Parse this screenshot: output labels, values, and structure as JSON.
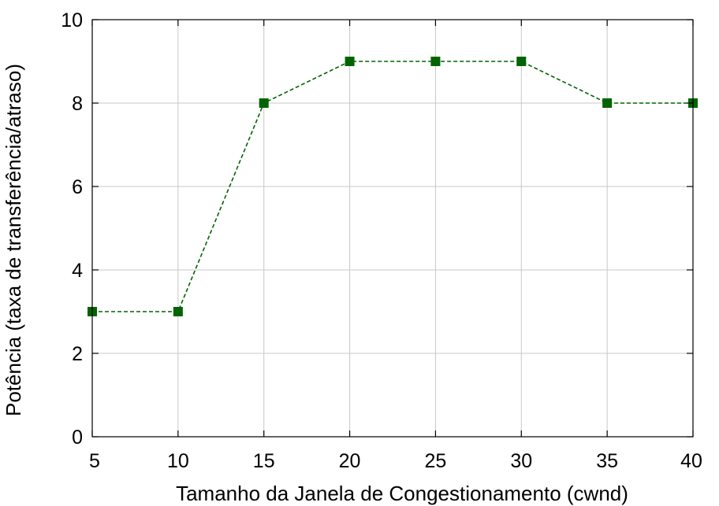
{
  "chart_data": {
    "type": "line",
    "title": "",
    "xlabel": "Tamanho da Janela de Congestionamento (cwnd)",
    "ylabel": "Potência (taxa de transferência/atraso)",
    "xlim": [
      5,
      40
    ],
    "ylim": [
      0,
      10
    ],
    "xticks": [
      5,
      10,
      15,
      20,
      25,
      30,
      35,
      40
    ],
    "yticks": [
      0,
      2,
      4,
      6,
      8,
      10
    ],
    "grid": true,
    "x": [
      5,
      10,
      15,
      20,
      25,
      30,
      35,
      40
    ],
    "series": [
      {
        "values": [
          3,
          3,
          8,
          9,
          9,
          9,
          8,
          8
        ],
        "color": "#006400",
        "line_style": "dashed",
        "marker": "square"
      }
    ]
  }
}
